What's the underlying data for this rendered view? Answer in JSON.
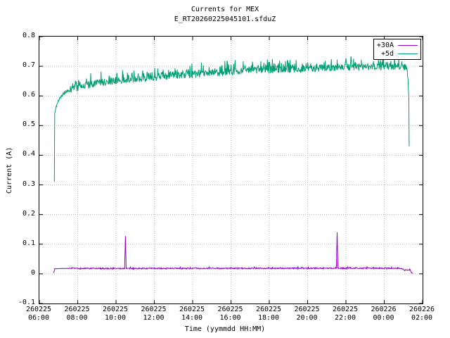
{
  "chart_data": {
    "type": "line",
    "title": "Currents for MEX",
    "subtitle": "E_RT20260225045101.sfduZ",
    "xlabel": "Time (yymmdd HH:MM)",
    "ylabel": "Current (A)",
    "xlim": [
      6,
      26
    ],
    "ylim": [
      -0.1,
      0.8
    ],
    "grid": true,
    "legend_position": "top-right",
    "yticks": [
      {
        "v": 0.8,
        "label": "0.8"
      },
      {
        "v": 0.7,
        "label": "0.7"
      },
      {
        "v": 0.6,
        "label": "0.6"
      },
      {
        "v": 0.5,
        "label": "0.5"
      },
      {
        "v": 0.4,
        "label": "0.4"
      },
      {
        "v": 0.3,
        "label": "0.3"
      },
      {
        "v": 0.2,
        "label": "0.2"
      },
      {
        "v": 0.1,
        "label": "0.1"
      },
      {
        "v": 0,
        "label": "0"
      },
      {
        "v": -0.1,
        "label": "-0.1"
      }
    ],
    "xticks": [
      {
        "t": 6,
        "date": "260225",
        "time": "06:00"
      },
      {
        "t": 8,
        "date": "260225",
        "time": "08:00"
      },
      {
        "t": 10,
        "date": "260225",
        "time": "10:00"
      },
      {
        "t": 12,
        "date": "260225",
        "time": "12:00"
      },
      {
        "t": 14,
        "date": "260225",
        "time": "14:00"
      },
      {
        "t": 16,
        "date": "260225",
        "time": "16:00"
      },
      {
        "t": 18,
        "date": "260225",
        "time": "18:00"
      },
      {
        "t": 20,
        "date": "260225",
        "time": "20:00"
      },
      {
        "t": 22,
        "date": "260225",
        "time": "22:00"
      },
      {
        "t": 24,
        "date": "260226",
        "time": "00:00"
      },
      {
        "t": 26,
        "date": "260226",
        "time": "02:00"
      }
    ],
    "series": [
      {
        "name": "+30A",
        "color": "#9400d3",
        "noise": {
          "band": 0.002,
          "spike_prob": 0.06,
          "spike_amp": 0.004
        },
        "keypoints": [
          [
            6.72,
            0.004
          ],
          [
            6.76,
            0.005
          ],
          [
            6.8,
            0.017
          ],
          [
            7.0,
            0.018
          ],
          [
            10.45,
            0.018
          ],
          [
            10.49,
            0.128
          ],
          [
            10.53,
            0.018
          ],
          [
            21.5,
            0.019
          ],
          [
            21.54,
            0.14
          ],
          [
            21.58,
            0.019
          ],
          [
            24.9,
            0.019
          ],
          [
            25.05,
            0.012
          ],
          [
            25.2,
            0.013
          ],
          [
            25.35,
            0.015
          ],
          [
            25.42,
            0.003
          ],
          [
            25.5,
            0.002
          ]
        ]
      },
      {
        "name": "+5d",
        "color": "#009e73",
        "noise": {
          "band": 0.012,
          "spike_prob": 0.25,
          "spike_amp": 0.03
        },
        "keypoints": [
          [
            6.78,
            0.31
          ],
          [
            6.8,
            0.54
          ],
          [
            6.88,
            0.565
          ],
          [
            7.0,
            0.585
          ],
          [
            7.15,
            0.6
          ],
          [
            7.4,
            0.613
          ],
          [
            7.8,
            0.625
          ],
          [
            8.3,
            0.634
          ],
          [
            9.0,
            0.643
          ],
          [
            9.8,
            0.65
          ],
          [
            10.8,
            0.656
          ],
          [
            11.8,
            0.661
          ],
          [
            12.8,
            0.666
          ],
          [
            13.8,
            0.671
          ],
          [
            14.8,
            0.676
          ],
          [
            15.8,
            0.68
          ],
          [
            16.8,
            0.684
          ],
          [
            17.8,
            0.687
          ],
          [
            18.8,
            0.689
          ],
          [
            19.8,
            0.691
          ],
          [
            20.8,
            0.694
          ],
          [
            21.8,
            0.696
          ],
          [
            22.8,
            0.698
          ],
          [
            23.8,
            0.699
          ],
          [
            24.6,
            0.699
          ],
          [
            25.0,
            0.697
          ],
          [
            25.2,
            0.688
          ],
          [
            25.28,
            0.6
          ],
          [
            25.3,
            0.43
          ]
        ]
      }
    ]
  }
}
